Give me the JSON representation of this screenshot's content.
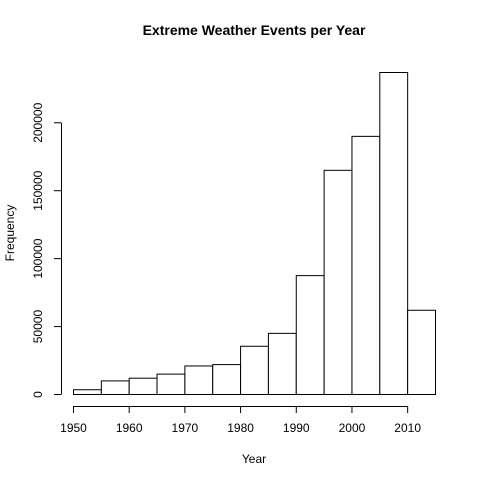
{
  "chart_data": {
    "type": "bar",
    "title": "Extreme Weather Events per Year",
    "xlabel": "Year",
    "ylabel": "Frequency",
    "bins": [
      {
        "start": 1950,
        "end": 1955,
        "value": 3500
      },
      {
        "start": 1955,
        "end": 1960,
        "value": 10000
      },
      {
        "start": 1960,
        "end": 1965,
        "value": 12000
      },
      {
        "start": 1965,
        "end": 1970,
        "value": 15000
      },
      {
        "start": 1970,
        "end": 1975,
        "value": 21000
      },
      {
        "start": 1975,
        "end": 1980,
        "value": 22000
      },
      {
        "start": 1980,
        "end": 1985,
        "value": 35500
      },
      {
        "start": 1985,
        "end": 1990,
        "value": 45000
      },
      {
        "start": 1990,
        "end": 1995,
        "value": 87500
      },
      {
        "start": 1995,
        "end": 2000,
        "value": 165000
      },
      {
        "start": 2000,
        "end": 2005,
        "value": 190000
      },
      {
        "start": 2005,
        "end": 2010,
        "value": 237000
      },
      {
        "start": 2010,
        "end": 2015,
        "value": 62000
      }
    ],
    "x_ticks": [
      1950,
      1960,
      1970,
      1980,
      1990,
      2000,
      2010
    ],
    "y_ticks": [
      0,
      50000,
      100000,
      150000,
      200000
    ],
    "xlim": [
      1950,
      2015
    ],
    "ylim": [
      0,
      237000
    ],
    "grid": false,
    "legend": "none"
  }
}
